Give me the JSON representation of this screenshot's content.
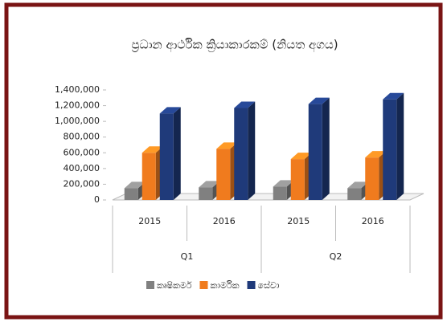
{
  "chart_data": {
    "type": "bar3d",
    "title": "ප්‍රධාන ආර්ථික ක්‍රියාකාරකම් (නියත අගය)",
    "groups": [
      {
        "name": "Q1",
        "categories": [
          "2015",
          "2016"
        ]
      },
      {
        "name": "Q2",
        "categories": [
          "2015",
          "2016"
        ]
      }
    ],
    "series": [
      {
        "name": "කෘෂිකර්ම",
        "color": "#808080",
        "values": [
          150000,
          160000,
          170000,
          150000
        ]
      },
      {
        "name": "කාර්මික",
        "color": "#f07b1e",
        "values": [
          600000,
          650000,
          520000,
          540000
        ]
      },
      {
        "name": "සේවා",
        "color": "#1f3a7a",
        "values": [
          1100000,
          1170000,
          1220000,
          1280000
        ]
      }
    ],
    "ylim": [
      0,
      1400000
    ],
    "yticks": [
      0,
      {
        "value": 200000,
        "label": "200,000"
      },
      {
        "value": 400000,
        "label": "400,000"
      },
      {
        "value": 600000,
        "label": "600,000"
      },
      {
        "value": 800000,
        "label": "800,000"
      },
      {
        "value": 1000000,
        "label": "1,000,000"
      },
      {
        "value": 1200000,
        "label": "1,200,000"
      },
      {
        "value": 1400000,
        "label": "1,400,000"
      }
    ],
    "grid": false,
    "legend": "bottom"
  }
}
